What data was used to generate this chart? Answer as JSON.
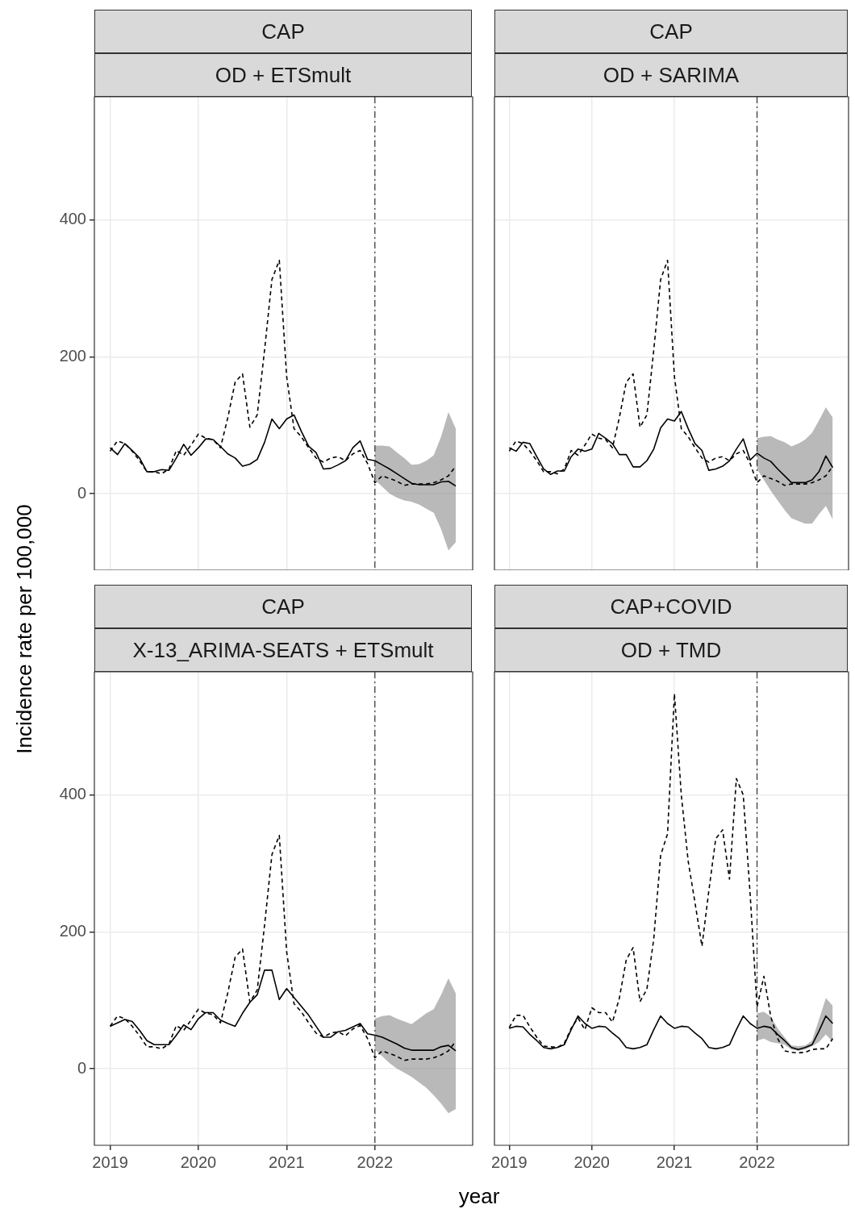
{
  "chart_data": [
    {
      "type": "line",
      "title": "CAP",
      "subtitle": "OD + ETSmult",
      "ylabel": "Incidence rate per 100,000",
      "x": [
        "2019-01",
        "2019-02",
        "2019-03",
        "2019-04",
        "2019-05",
        "2019-06",
        "2019-07",
        "2019-08",
        "2019-09",
        "2019-10",
        "2019-11",
        "2019-12",
        "2020-01",
        "2020-02",
        "2020-03",
        "2020-04",
        "2020-05",
        "2020-06",
        "2020-07",
        "2020-08",
        "2020-09",
        "2020-10",
        "2020-11",
        "2020-12",
        "2021-01",
        "2021-02",
        "2021-03",
        "2021-04",
        "2021-05",
        "2021-06",
        "2021-07",
        "2021-08",
        "2021-09",
        "2021-10",
        "2021-11",
        "2021-12",
        "2022-01",
        "2022-02",
        "2022-03",
        "2022-04",
        "2022-05",
        "2022-06",
        "2022-07",
        "2022-08",
        "2022-09",
        "2022-10",
        "2022-11",
        "2022-12"
      ],
      "xlim": [
        "2018-10-27",
        "2023-02-10"
      ],
      "xticks": [
        "2019",
        "2020",
        "2021",
        "2022"
      ],
      "ylim": [
        -112,
        580
      ],
      "yticks": [
        0,
        200,
        400
      ],
      "grid": true,
      "marker": "none",
      "tick_labels": "y",
      "ref_lines": [
        {
          "axis": "x",
          "value": "2022",
          "color": "#333333"
        }
      ],
      "series": [
        {
          "color": "#000000",
          "line_style": "dashed",
          "values": [
            62,
            77,
            73,
            62,
            48,
            32,
            32,
            29,
            36,
            63,
            56,
            71,
            87,
            81,
            79,
            67,
            111,
            163,
            175,
            97,
            115,
            210,
            313,
            341,
            171,
            95,
            83,
            67,
            52,
            46,
            52,
            54,
            48,
            58,
            63,
            44,
            16,
            26,
            22,
            18,
            12,
            14,
            14,
            14,
            16,
            20,
            26,
            40
          ]
        },
        {
          "color": "#000000",
          "line_style": "solid",
          "values": [
            67,
            57,
            73,
            63,
            52,
            32,
            32,
            35,
            34,
            52,
            72,
            56,
            67,
            80,
            79,
            69,
            58,
            52,
            40,
            43,
            50,
            75,
            109,
            95,
            109,
            115,
            91,
            69,
            60,
            36,
            37,
            42,
            48,
            67,
            77,
            50,
            48,
            42,
            36,
            29,
            22,
            15,
            13,
            13,
            13,
            17,
            18,
            11
          ],
          "lower": [
            null,
            null,
            null,
            null,
            null,
            null,
            null,
            null,
            null,
            null,
            null,
            null,
            null,
            null,
            null,
            null,
            null,
            null,
            null,
            null,
            null,
            null,
            null,
            null,
            null,
            null,
            null,
            null,
            null,
            null,
            null,
            null,
            null,
            null,
            null,
            null,
            20,
            10,
            0,
            -6,
            -10,
            -12,
            -16,
            -22,
            -28,
            -52,
            -83,
            -71
          ],
          "upper": [
            null,
            null,
            null,
            null,
            null,
            null,
            null,
            null,
            null,
            null,
            null,
            null,
            null,
            null,
            null,
            null,
            null,
            null,
            null,
            null,
            null,
            null,
            null,
            null,
            null,
            null,
            null,
            null,
            null,
            null,
            null,
            null,
            null,
            null,
            null,
            null,
            70,
            70,
            69,
            60,
            52,
            42,
            43,
            48,
            56,
            83,
            119,
            95
          ]
        }
      ]
    },
    {
      "type": "line",
      "title": "CAP",
      "subtitle": "OD + SARIMA",
      "x": [
        "2019-01",
        "2019-02",
        "2019-03",
        "2019-04",
        "2019-05",
        "2019-06",
        "2019-07",
        "2019-08",
        "2019-09",
        "2019-10",
        "2019-11",
        "2019-12",
        "2020-01",
        "2020-02",
        "2020-03",
        "2020-04",
        "2020-05",
        "2020-06",
        "2020-07",
        "2020-08",
        "2020-09",
        "2020-10",
        "2020-11",
        "2020-12",
        "2021-01",
        "2021-02",
        "2021-03",
        "2021-04",
        "2021-05",
        "2021-06",
        "2021-07",
        "2021-08",
        "2021-09",
        "2021-10",
        "2021-11",
        "2021-12",
        "2022-01",
        "2022-02",
        "2022-03",
        "2022-04",
        "2022-05",
        "2022-06",
        "2022-07",
        "2022-08",
        "2022-09",
        "2022-10",
        "2022-11",
        "2022-12"
      ],
      "xlim": [
        "2018-10-27",
        "2023-02-10"
      ],
      "xticks": [
        "2019",
        "2020",
        "2021",
        "2022"
      ],
      "ylim": [
        -112,
        580
      ],
      "yticks": [
        0,
        200,
        400
      ],
      "grid": true,
      "marker": "none",
      "tick_labels": false,
      "ref_lines": [
        {
          "axis": "x",
          "value": "2022",
          "color": "#333333"
        }
      ],
      "series": [
        {
          "color": "#000000",
          "line_style": "dashed",
          "values": [
            62,
            77,
            73,
            62,
            48,
            32,
            32,
            29,
            36,
            63,
            56,
            71,
            87,
            81,
            79,
            67,
            111,
            163,
            175,
            97,
            115,
            210,
            313,
            341,
            171,
            95,
            83,
            67,
            52,
            46,
            52,
            54,
            48,
            58,
            63,
            44,
            16,
            26,
            22,
            18,
            12,
            14,
            14,
            14,
            16,
            20,
            26,
            40
          ]
        },
        {
          "color": "#000000",
          "line_style": "solid",
          "values": [
            67,
            62,
            75,
            73,
            54,
            36,
            28,
            33,
            33,
            54,
            65,
            62,
            65,
            88,
            81,
            73,
            57,
            57,
            39,
            39,
            48,
            65,
            96,
            109,
            106,
            120,
            95,
            73,
            63,
            34,
            36,
            40,
            48,
            65,
            80,
            49,
            59,
            52,
            47,
            36,
            26,
            16,
            16,
            16,
            20,
            32,
            55,
            38
          ],
          "lower": [
            null,
            null,
            null,
            null,
            null,
            null,
            null,
            null,
            null,
            null,
            null,
            null,
            null,
            null,
            null,
            null,
            null,
            null,
            null,
            null,
            null,
            null,
            null,
            null,
            null,
            null,
            null,
            null,
            null,
            null,
            null,
            null,
            null,
            null,
            null,
            null,
            36,
            20,
            4,
            -10,
            -24,
            -36,
            -40,
            -44,
            -44,
            -30,
            -18,
            -38
          ],
          "upper": [
            null,
            null,
            null,
            null,
            null,
            null,
            null,
            null,
            null,
            null,
            null,
            null,
            null,
            null,
            null,
            null,
            null,
            null,
            null,
            null,
            null,
            null,
            null,
            null,
            null,
            null,
            null,
            null,
            null,
            null,
            null,
            null,
            null,
            null,
            null,
            null,
            81,
            83,
            84,
            79,
            75,
            69,
            73,
            79,
            89,
            107,
            126,
            111
          ]
        }
      ]
    },
    {
      "type": "line",
      "title": "CAP",
      "subtitle": "X-13_ARIMA-SEATS + ETSmult",
      "xlabel": "year",
      "x": [
        "2019-01",
        "2019-02",
        "2019-03",
        "2019-04",
        "2019-05",
        "2019-06",
        "2019-07",
        "2019-08",
        "2019-09",
        "2019-10",
        "2019-11",
        "2019-12",
        "2020-01",
        "2020-02",
        "2020-03",
        "2020-04",
        "2020-05",
        "2020-06",
        "2020-07",
        "2020-08",
        "2020-09",
        "2020-10",
        "2020-11",
        "2020-12",
        "2021-01",
        "2021-02",
        "2021-03",
        "2021-04",
        "2021-05",
        "2021-06",
        "2021-07",
        "2021-08",
        "2021-09",
        "2021-10",
        "2021-11",
        "2021-12",
        "2022-01",
        "2022-02",
        "2022-03",
        "2022-04",
        "2022-05",
        "2022-06",
        "2022-07",
        "2022-08",
        "2022-09",
        "2022-10",
        "2022-11",
        "2022-12"
      ],
      "xlim": [
        "2018-10-27",
        "2023-02-10"
      ],
      "xticks": [
        "2019",
        "2020",
        "2021",
        "2022"
      ],
      "ylim": [
        -112,
        580
      ],
      "yticks": [
        0,
        200,
        400
      ],
      "grid": true,
      "marker": "none",
      "ref_lines": [
        {
          "axis": "x",
          "value": "2022",
          "color": "#333333"
        }
      ],
      "series": [
        {
          "color": "#000000",
          "line_style": "dashed",
          "values": [
            62,
            77,
            73,
            62,
            48,
            32,
            32,
            29,
            36,
            63,
            56,
            71,
            87,
            81,
            79,
            67,
            111,
            163,
            175,
            97,
            115,
            210,
            313,
            341,
            171,
            95,
            83,
            67,
            52,
            46,
            52,
            54,
            48,
            58,
            63,
            44,
            16,
            26,
            22,
            18,
            12,
            14,
            14,
            14,
            16,
            20,
            26,
            40
          ]
        },
        {
          "color": "#000000",
          "line_style": "solid",
          "values": [
            62,
            67,
            72,
            69,
            56,
            41,
            35,
            35,
            35,
            49,
            64,
            57,
            73,
            82,
            82,
            71,
            66,
            62,
            81,
            97,
            108,
            144,
            144,
            101,
            117,
            104,
            91,
            78,
            62,
            46,
            46,
            54,
            56,
            61,
            66,
            51,
            49,
            46,
            41,
            36,
            30,
            27,
            27,
            27,
            27,
            32,
            34,
            26
          ],
          "lower": [
            null,
            null,
            null,
            null,
            null,
            null,
            null,
            null,
            null,
            null,
            null,
            null,
            null,
            null,
            null,
            null,
            null,
            null,
            null,
            null,
            null,
            null,
            null,
            null,
            null,
            null,
            null,
            null,
            null,
            null,
            null,
            null,
            null,
            null,
            null,
            null,
            28,
            18,
            8,
            0,
            -6,
            -12,
            -20,
            -28,
            -39,
            -51,
            -65,
            -59
          ],
          "upper": [
            null,
            null,
            null,
            null,
            null,
            null,
            null,
            null,
            null,
            null,
            null,
            null,
            null,
            null,
            null,
            null,
            null,
            null,
            null,
            null,
            null,
            null,
            null,
            null,
            null,
            null,
            null,
            null,
            null,
            null,
            null,
            null,
            null,
            null,
            null,
            null,
            73,
            77,
            78,
            73,
            69,
            65,
            73,
            81,
            87,
            108,
            132,
            110
          ]
        }
      ]
    },
    {
      "type": "line",
      "title": "CAP+COVID",
      "subtitle": "OD + TMD",
      "x": [
        "2019-01",
        "2019-02",
        "2019-03",
        "2019-04",
        "2019-05",
        "2019-06",
        "2019-07",
        "2019-08",
        "2019-09",
        "2019-10",
        "2019-11",
        "2019-12",
        "2020-01",
        "2020-02",
        "2020-03",
        "2020-04",
        "2020-05",
        "2020-06",
        "2020-07",
        "2020-08",
        "2020-09",
        "2020-10",
        "2020-11",
        "2020-12",
        "2021-01",
        "2021-02",
        "2021-03",
        "2021-04",
        "2021-05",
        "2021-06",
        "2021-07",
        "2021-08",
        "2021-09",
        "2021-10",
        "2021-11",
        "2021-12",
        "2022-01",
        "2022-02",
        "2022-03",
        "2022-04",
        "2022-05",
        "2022-06",
        "2022-07",
        "2022-08",
        "2022-09",
        "2022-10",
        "2022-11",
        "2022-12"
      ],
      "xlim": [
        "2018-10-27",
        "2023-02-10"
      ],
      "xticks": [
        "2019",
        "2020",
        "2021",
        "2022"
      ],
      "ylim": [
        -112,
        580
      ],
      "yticks": [
        0,
        200,
        400
      ],
      "grid": true,
      "marker": "none",
      "tick_labels": "x",
      "ref_lines": [
        {
          "axis": "x",
          "value": "2022",
          "color": "#333333"
        }
      ],
      "series": [
        {
          "color": "#000000",
          "line_style": "dashed",
          "values": [
            60,
            78,
            78,
            61,
            46,
            33,
            32,
            31,
            37,
            59,
            74,
            57,
            89,
            82,
            82,
            68,
            103,
            159,
            177,
            98,
            116,
            190,
            312,
            343,
            548,
            400,
            303,
            242,
            179,
            260,
            336,
            349,
            277,
            424,
            400,
            255,
            90,
            135,
            76,
            44,
            26,
            24,
            23,
            24,
            28,
            29,
            29,
            44
          ]
        },
        {
          "color": "#000000",
          "line_style": "solid",
          "values": [
            59,
            62,
            61,
            50,
            41,
            31,
            29,
            31,
            35,
            57,
            77,
            66,
            59,
            62,
            61,
            52,
            44,
            31,
            29,
            31,
            35,
            57,
            77,
            66,
            59,
            62,
            61,
            52,
            44,
            31,
            29,
            31,
            35,
            57,
            77,
            66,
            59,
            62,
            60,
            50,
            41,
            31,
            28,
            31,
            35,
            55,
            77,
            66
          ],
          "lower": [
            null,
            null,
            null,
            null,
            null,
            null,
            null,
            null,
            null,
            null,
            null,
            null,
            null,
            null,
            null,
            null,
            null,
            null,
            null,
            null,
            null,
            null,
            null,
            null,
            null,
            null,
            null,
            null,
            null,
            null,
            null,
            null,
            null,
            null,
            null,
            null,
            41,
            44,
            39,
            37,
            35,
            28,
            26,
            28,
            33,
            39,
            50,
            39
          ],
          "upper": [
            null,
            null,
            null,
            null,
            null,
            null,
            null,
            null,
            null,
            null,
            null,
            null,
            null,
            null,
            null,
            null,
            null,
            null,
            null,
            null,
            null,
            null,
            null,
            null,
            null,
            null,
            null,
            null,
            null,
            null,
            null,
            null,
            null,
            null,
            null,
            null,
            81,
            83,
            76,
            59,
            46,
            34,
            33,
            34,
            41,
            72,
            103,
            92
          ]
        }
      ]
    }
  ]
}
